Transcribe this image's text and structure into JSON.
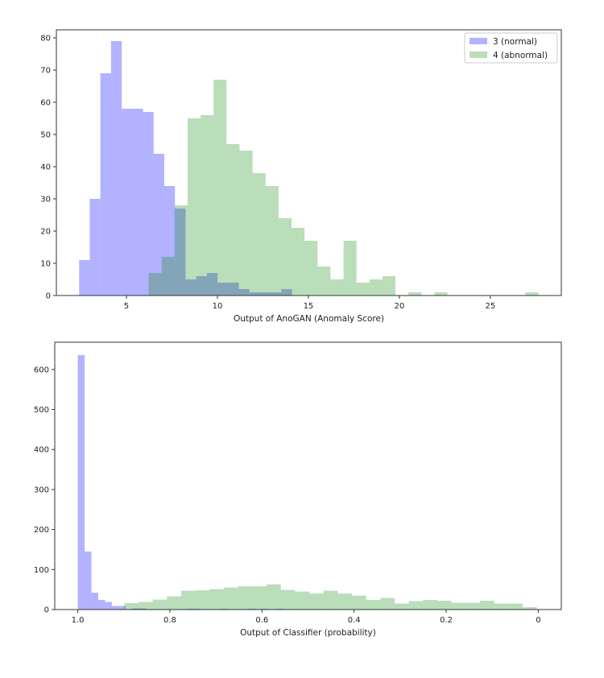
{
  "chart_data": [
    {
      "type": "histogram",
      "xlabel": "Output of AnoGAN (Anomaly Score)",
      "ylabel": "",
      "xlim": [
        1.15,
        28.9
      ],
      "ylim": [
        0,
        82.5
      ],
      "xticks": [
        5,
        10,
        15,
        20,
        25
      ],
      "xtick_labels": [
        "5",
        "10",
        "15",
        "20",
        "25"
      ],
      "yticks": [
        0,
        10,
        20,
        30,
        40,
        50,
        60,
        70,
        80
      ],
      "ytick_labels": [
        "0",
        "10",
        "20",
        "30",
        "40",
        "50",
        "60",
        "70",
        "80"
      ],
      "grid": false,
      "legend": {
        "placement": "top-right",
        "entries": [
          "3 (normal)",
          "4 (abnormal)"
        ]
      },
      "series": [
        {
          "name": "3 (normal)",
          "color": "#0000ff",
          "alpha": 0.3,
          "bin_start": 2.4,
          "bin_width": 0.585,
          "counts": [
            11,
            30,
            69,
            79,
            58,
            58,
            57,
            44,
            34,
            27,
            5,
            6,
            7,
            4,
            4,
            2,
            1,
            1,
            1,
            2
          ]
        },
        {
          "name": "4 (abnormal)",
          "color": "#008000",
          "alpha": 0.27,
          "bin_start": 6.22,
          "bin_width": 0.714,
          "counts": [
            7,
            12,
            28,
            55,
            56,
            67,
            47,
            45,
            38,
            34,
            24,
            21,
            17,
            9,
            5,
            17,
            4,
            5,
            6,
            0,
            1,
            0,
            1,
            0,
            0,
            0,
            0,
            0,
            0,
            1
          ]
        }
      ]
    },
    {
      "type": "histogram",
      "xlabel": "Output of Classifier (probability)",
      "ylabel": "",
      "xlim": [
        1.05,
        -0.05
      ],
      "ylim": [
        0,
        668
      ],
      "xticks": [
        1.0,
        0.8,
        0.6,
        0.4,
        0.2,
        0
      ],
      "xtick_labels": [
        "1.0",
        "0.8",
        "0.6",
        "0.4",
        "0.2",
        "0"
      ],
      "yticks": [
        0,
        100,
        200,
        300,
        400,
        500,
        600
      ],
      "ytick_labels": [
        "0",
        "100",
        "200",
        "300",
        "400",
        "500",
        "600"
      ],
      "grid": false,
      "series": [
        {
          "color": "#0000ff",
          "alpha": 0.3,
          "bin_start": 0.556,
          "bin_width": 0.0148,
          "counts": [
            2,
            0,
            2,
            0,
            2,
            0,
            0,
            0,
            2,
            0,
            0,
            0,
            2,
            2,
            0,
            0,
            0,
            0,
            0,
            0,
            3,
            3,
            0,
            9,
            9,
            19,
            24,
            42,
            145,
            636
          ]
        },
        {
          "color": "#008000",
          "alpha": 0.27,
          "bin_start": 0.003,
          "bin_width": 0.0309,
          "counts": [
            6,
            15,
            15,
            22,
            17,
            17,
            22,
            24,
            21,
            15,
            29,
            24,
            35,
            40,
            47,
            40,
            45,
            49,
            63,
            58,
            58,
            55,
            51,
            48,
            47,
            33,
            25,
            19,
            16
          ]
        }
      ]
    }
  ]
}
